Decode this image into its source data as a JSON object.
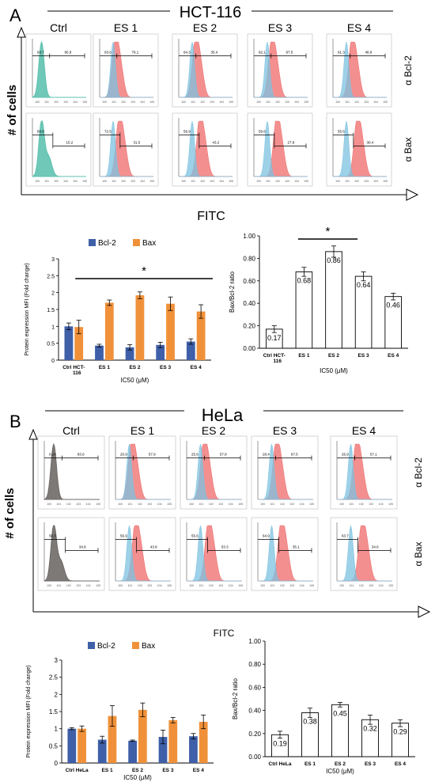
{
  "figure": {
    "panel_a": {
      "letter": "A",
      "cell_line": "HCT-116",
      "columns": [
        "Ctrl",
        "ES 1",
        "ES 2",
        "ES 3",
        "ES 4"
      ],
      "rows": [
        "α Bcl-2",
        "α Bax"
      ],
      "y_title": "# of cells",
      "x_title": "FITC",
      "histogram_colors": {
        "control": "#5fc2b0",
        "blue": "#7cc2e0",
        "red": "#ef6a6a"
      },
      "gate_values": [
        [
          "93.7",
          "93.6",
          "64.3",
          "92.1",
          "91.3"
        ],
        [
          "89.8",
          "72.5",
          "56.9",
          "59.8",
          "55.6"
        ]
      ],
      "gate_values_right": [
        [
          "95.9",
          "79.1",
          "35.4",
          "97.5",
          "48.9"
        ],
        [
          "15.2",
          "31.5",
          "43.2",
          "27.8",
          "30.4"
        ]
      ]
    },
    "panel_b": {
      "letter": "B",
      "cell_line": "HeLa",
      "columns": [
        "Ctrl",
        "ES 1",
        "ES 2",
        "ES 3",
        "ES 4"
      ],
      "rows": [
        "α Bcl-2",
        "α Bax"
      ],
      "y_title": "# of cells",
      "x_title": "FITC",
      "histogram_colors": {
        "control": "#6f6a68",
        "blue": "#7cc2e0",
        "red": "#ef6a6a"
      },
      "gate_values": [
        [
          "0.14",
          "20.9",
          "25.6",
          "28.4",
          "26.9"
        ],
        [
          "50.3",
          "56.9",
          "55.6",
          "64.9",
          "63.7"
        ]
      ],
      "gate_values_right": [
        [
          "83.6",
          "57.9",
          "57.8",
          "67.5",
          "57.1"
        ],
        [
          "34.8",
          "43.8",
          "53.3",
          "35.1",
          "34.6"
        ]
      ]
    }
  },
  "chart_data": [
    {
      "type": "bar",
      "panel": "A",
      "title": "",
      "categories": [
        "Ctrl HCT-116",
        "ES 1",
        "ES 2",
        "ES 3",
        "ES 4"
      ],
      "series": [
        {
          "name": "Bcl-2",
          "color": "#3f5fa8",
          "values": [
            1.0,
            0.43,
            0.38,
            0.45,
            0.55
          ],
          "errors": [
            0.1,
            0.04,
            0.08,
            0.08,
            0.08
          ]
        },
        {
          "name": "Bax",
          "color": "#f0913a",
          "values": [
            0.98,
            1.7,
            1.92,
            1.67,
            1.44
          ],
          "errors": [
            0.2,
            0.08,
            0.1,
            0.2,
            0.2
          ]
        }
      ],
      "xlabel": "IC50 (μM)",
      "ylabel": "Protein expression MFI (Fold change)",
      "ylim": [
        0,
        3
      ],
      "yticks": [
        "0",
        "0.5",
        "1",
        "1.5",
        "2",
        "2.5",
        "3"
      ],
      "significance": "*",
      "legend": "top"
    },
    {
      "type": "bar",
      "panel": "A",
      "title": "",
      "categories": [
        "Ctrl HCT-116",
        "ES 1",
        "ES 2",
        "ES 3",
        "ES 4"
      ],
      "series": [
        {
          "name": "",
          "color": "#ffffff",
          "values": [
            0.17,
            0.68,
            0.86,
            0.64,
            0.46
          ],
          "errors": [
            0.03,
            0.04,
            0.05,
            0.04,
            0.03
          ]
        }
      ],
      "data_labels": [
        "0.17",
        "0.68",
        "0.86",
        "0.64",
        "0.46"
      ],
      "xlabel": "IC50 (μM)",
      "ylabel": "Bax/Bcl-2 ratio",
      "ylim": [
        0,
        1
      ],
      "yticks": [
        "0.00",
        "0.20",
        "0.40",
        "0.60",
        "0.80",
        "1.00"
      ],
      "significance": "*"
    },
    {
      "type": "bar",
      "panel": "B",
      "title": "",
      "categories": [
        "Ctrl HeLa",
        "ES 1",
        "ES 2",
        "ES 3",
        "ES 4"
      ],
      "series": [
        {
          "name": "Bcl-2",
          "color": "#3f5fa8",
          "values": [
            1.0,
            0.68,
            0.65,
            0.76,
            0.78
          ],
          "errors": [
            0.03,
            0.1,
            0.02,
            0.2,
            0.08
          ]
        },
        {
          "name": "Bax",
          "color": "#f0913a",
          "values": [
            1.0,
            1.37,
            1.55,
            1.25,
            1.2
          ],
          "errors": [
            0.08,
            0.3,
            0.2,
            0.08,
            0.2
          ]
        }
      ],
      "xlabel": "IC50 (μM)",
      "ylabel": "Protein expression MFI (Fold change)",
      "ylim": [
        0,
        3
      ],
      "yticks": [
        "0",
        "0.5",
        "1",
        "1.5",
        "2",
        "2.5",
        "3"
      ],
      "legend": "top"
    },
    {
      "type": "bar",
      "panel": "B",
      "title": "",
      "categories": [
        "Ctrl HeLa",
        "ES 1",
        "ES 2",
        "ES 3",
        "ES 4"
      ],
      "series": [
        {
          "name": "",
          "color": "#ffffff",
          "values": [
            0.19,
            0.38,
            0.45,
            0.32,
            0.29
          ],
          "errors": [
            0.03,
            0.04,
            0.02,
            0.04,
            0.03
          ]
        }
      ],
      "data_labels": [
        "0.19",
        "0.38",
        "0.45",
        "0.32",
        "0.29"
      ],
      "xlabel": "IC50 (μM)",
      "ylabel": "Bax/Bcl-2 ratio",
      "ylim": [
        0,
        1
      ],
      "yticks": [
        "0.00",
        "0.20",
        "0.40",
        "0.60",
        "0.80",
        "1.00"
      ]
    }
  ]
}
